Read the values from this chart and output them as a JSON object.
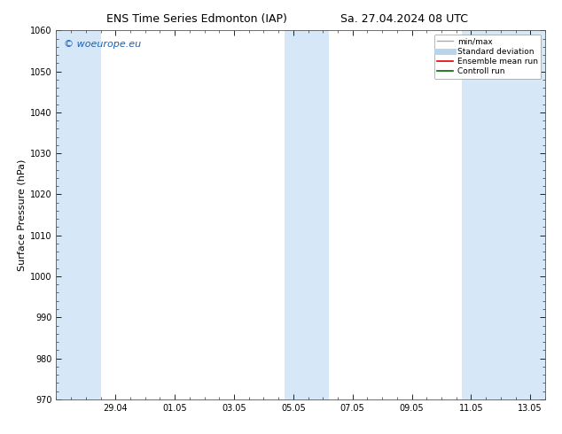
{
  "title_left": "ENS Time Series Edmonton (IAP)",
  "title_right": "Sa. 27.04.2024 08 UTC",
  "ylabel": "Surface Pressure (hPa)",
  "ylim": [
    970,
    1060
  ],
  "yticks": [
    970,
    980,
    990,
    1000,
    1010,
    1020,
    1030,
    1040,
    1050,
    1060
  ],
  "xtick_labels": [
    "29.04",
    "01.05",
    "03.05",
    "05.05",
    "07.05",
    "09.05",
    "11.05",
    "13.05"
  ],
  "xtick_positions": [
    2,
    4,
    6,
    8,
    10,
    12,
    14,
    16
  ],
  "watermark": "© woeurope.eu",
  "watermark_color": "#1a5fb4",
  "bg_color": "#ffffff",
  "plot_bg_color": "#ffffff",
  "band_color": "#d6e8f7",
  "band_alpha": 1.0,
  "legend_items": [
    {
      "label": "min/max",
      "color": "#aaaaaa",
      "lw": 1.0
    },
    {
      "label": "Standard deviation",
      "color": "#b8d4ea",
      "lw": 5
    },
    {
      "label": "Ensemble mean run",
      "color": "#dd0000",
      "lw": 1.2
    },
    {
      "label": "Controll run",
      "color": "#006600",
      "lw": 1.2
    }
  ],
  "band_ranges": [
    [
      0.0,
      1.5
    ],
    [
      7.7,
      9.2
    ],
    [
      13.7,
      16.5
    ]
  ],
  "xlim": [
    0,
    16.5
  ],
  "x_minor_step": 0.5
}
